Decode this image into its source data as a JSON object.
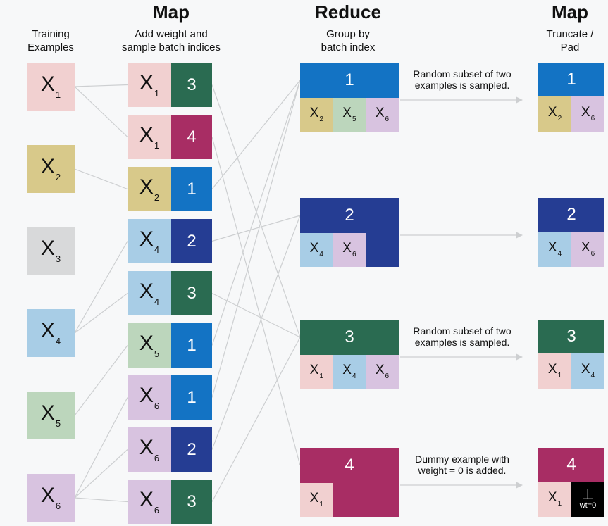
{
  "colors": {
    "x1": "#f1d0d0",
    "x2": "#d8c98a",
    "x3": "#d8d9da",
    "x4": "#a8cde6",
    "x5": "#bcd6bc",
    "x6": "#d8c3e0",
    "b1": "#1373c4",
    "b2": "#253d93",
    "b3": "#2a6b51",
    "b4": "#a82d64",
    "line": "#cdcfd1",
    "arrow": "#cdcfd1"
  },
  "headers": {
    "training": "Training\nExamples",
    "map1": "Map",
    "map1_sub": "Add weight and\nsample batch indices",
    "reduce": "Reduce",
    "reduce_sub": "Group by\nbatch index",
    "map2": "Map",
    "map2_sub": "Truncate /\nPad"
  },
  "training_examples": [
    {
      "label": "X",
      "sub": "1",
      "color": "x1"
    },
    {
      "label": "X",
      "sub": "2",
      "color": "x2"
    },
    {
      "label": "X",
      "sub": "3",
      "color": "x3"
    },
    {
      "label": "X",
      "sub": "4",
      "color": "x4"
    },
    {
      "label": "X",
      "sub": "5",
      "color": "x5"
    },
    {
      "label": "X",
      "sub": "6",
      "color": "x6"
    }
  ],
  "map_pairs": [
    {
      "label": "X",
      "sub": "1",
      "color": "x1",
      "batch": "3",
      "batch_color": "b3"
    },
    {
      "label": "X",
      "sub": "1",
      "color": "x1",
      "batch": "4",
      "batch_color": "b4"
    },
    {
      "label": "X",
      "sub": "2",
      "color": "x2",
      "batch": "1",
      "batch_color": "b1"
    },
    {
      "label": "X",
      "sub": "4",
      "color": "x4",
      "batch": "2",
      "batch_color": "b2"
    },
    {
      "label": "X",
      "sub": "4",
      "color": "x4",
      "batch": "3",
      "batch_color": "b3"
    },
    {
      "label": "X",
      "sub": "5",
      "color": "x5",
      "batch": "1",
      "batch_color": "b1"
    },
    {
      "label": "X",
      "sub": "6",
      "color": "x6",
      "batch": "1",
      "batch_color": "b1"
    },
    {
      "label": "X",
      "sub": "6",
      "color": "x6",
      "batch": "2",
      "batch_color": "b2"
    },
    {
      "label": "X",
      "sub": "6",
      "color": "x6",
      "batch": "3",
      "batch_color": "b3"
    }
  ],
  "reduce_groups": [
    {
      "batch": "1",
      "color": "b1",
      "members": [
        {
          "label": "X",
          "sub": "2",
          "color": "x2"
        },
        {
          "label": "X",
          "sub": "5",
          "color": "x5"
        },
        {
          "label": "X",
          "sub": "6",
          "color": "x6"
        }
      ]
    },
    {
      "batch": "2",
      "color": "b2",
      "members": [
        {
          "label": "X",
          "sub": "4",
          "color": "x4"
        },
        {
          "label": "X",
          "sub": "6",
          "color": "x6"
        }
      ]
    },
    {
      "batch": "3",
      "color": "b3",
      "members": [
        {
          "label": "X",
          "sub": "1",
          "color": "x1"
        },
        {
          "label": "X",
          "sub": "4",
          "color": "x4"
        },
        {
          "label": "X",
          "sub": "6",
          "color": "x6"
        }
      ]
    },
    {
      "batch": "4",
      "color": "b4",
      "members": [
        {
          "label": "X",
          "sub": "1",
          "color": "x1"
        }
      ]
    }
  ],
  "notes": [
    {
      "text": "Random subset of two\nexamples is sampled."
    },
    {
      "text": ""
    },
    {
      "text": "Random subset of two\nexamples is sampled."
    },
    {
      "text": "Dummy example with\nweight = 0 is added."
    }
  ],
  "final_groups": [
    {
      "batch": "1",
      "color": "b1",
      "members": [
        {
          "label": "X",
          "sub": "2",
          "color": "x2"
        },
        {
          "label": "X",
          "sub": "6",
          "color": "x6"
        }
      ]
    },
    {
      "batch": "2",
      "color": "b2",
      "members": [
        {
          "label": "X",
          "sub": "4",
          "color": "x4"
        },
        {
          "label": "X",
          "sub": "6",
          "color": "x6"
        }
      ]
    },
    {
      "batch": "3",
      "color": "b3",
      "members": [
        {
          "label": "X",
          "sub": "1",
          "color": "x1"
        },
        {
          "label": "X",
          "sub": "4",
          "color": "x4"
        }
      ]
    },
    {
      "batch": "4",
      "color": "b4",
      "members": [
        {
          "label": "X",
          "sub": "1",
          "color": "x1"
        },
        {
          "dummy": true,
          "symbol": "⊥",
          "weight_label": "wt=0"
        }
      ]
    }
  ]
}
